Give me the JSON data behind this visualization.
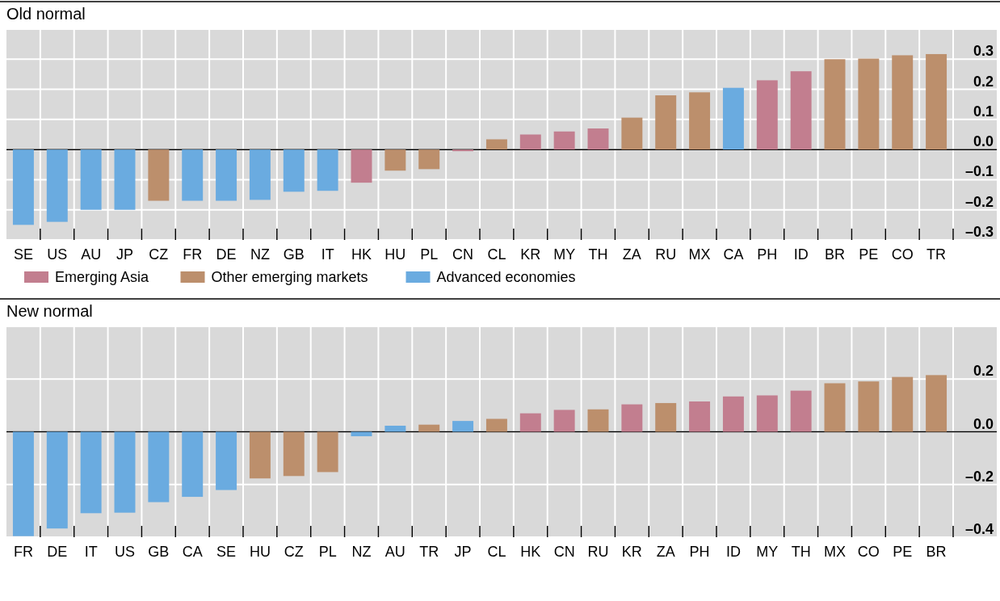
{
  "chart_data": [
    {
      "type": "bar",
      "title": "Old normal",
      "grid": true,
      "legend": "bottom",
      "categories": [
        "SE",
        "US",
        "AU",
        "JP",
        "CZ",
        "FR",
        "DE",
        "NZ",
        "GB",
        "IT",
        "HK",
        "HU",
        "PL",
        "CN",
        "CL",
        "KR",
        "MY",
        "TH",
        "ZA",
        "RU",
        "MX",
        "CA",
        "PH",
        "ID",
        "BR",
        "PE",
        "CO",
        "TR"
      ],
      "ylim": [
        -0.3,
        0.4
      ],
      "yticks": [
        {
          "value": -0.3,
          "label": "–0.3"
        },
        {
          "value": -0.2,
          "label": "–0.2"
        },
        {
          "value": -0.1,
          "label": "–0.1"
        },
        {
          "value": 0,
          "label": "0.0"
        },
        {
          "value": 0.1,
          "label": "0.1"
        },
        {
          "value": 0.2,
          "label": "0.2"
        },
        {
          "value": 0.3,
          "label": "0.3"
        },
        {
          "value": 0.4,
          "label": null
        }
      ],
      "series": [
        {
          "name": "Emerging Asia",
          "color": "#c27e8f",
          "values": [
            null,
            null,
            null,
            null,
            null,
            null,
            null,
            null,
            null,
            null,
            -0.11,
            null,
            null,
            -0.003,
            null,
            0.05,
            0.06,
            0.07,
            null,
            null,
            null,
            null,
            0.23,
            0.26,
            null,
            null,
            null,
            null
          ]
        },
        {
          "name": "Other emerging markets",
          "color": "#bc8f6c",
          "values": [
            null,
            null,
            null,
            null,
            -0.17,
            null,
            null,
            null,
            null,
            null,
            null,
            -0.07,
            -0.065,
            null,
            0.034,
            null,
            null,
            null,
            0.106,
            0.18,
            0.19,
            null,
            null,
            null,
            0.3,
            0.302,
            0.313,
            0.317
          ]
        },
        {
          "name": "Advanced economies",
          "color": "#6aabe0",
          "values": [
            -0.25,
            -0.24,
            -0.2,
            -0.2,
            null,
            -0.17,
            -0.17,
            -0.167,
            -0.14,
            -0.137,
            null,
            null,
            null,
            null,
            null,
            null,
            null,
            null,
            null,
            null,
            null,
            0.205,
            null,
            null,
            null,
            null,
            null,
            null
          ]
        }
      ]
    },
    {
      "type": "bar",
      "title": "New normal",
      "grid": true,
      "categories": [
        "FR",
        "DE",
        "IT",
        "US",
        "GB",
        "CA",
        "SE",
        "HU",
        "CZ",
        "PL",
        "NZ",
        "AU",
        "TR",
        "JP",
        "CL",
        "HK",
        "CN",
        "RU",
        "KR",
        "ZA",
        "PH",
        "ID",
        "MY",
        "TH",
        "MX",
        "CO",
        "PE",
        "BR"
      ],
      "ylim": [
        -0.4,
        0.4
      ],
      "yticks": [
        {
          "value": -0.4,
          "label": "–0.4"
        },
        {
          "value": -0.2,
          "label": "–0.2"
        },
        {
          "value": 0,
          "label": "0.0"
        },
        {
          "value": 0.2,
          "label": "0.2"
        },
        {
          "value": 0.4,
          "label": null
        }
      ],
      "series": [
        {
          "color": "#c27e8f",
          "values": [
            null,
            null,
            null,
            null,
            null,
            null,
            null,
            null,
            null,
            null,
            null,
            null,
            null,
            null,
            null,
            0.07,
            0.083,
            null,
            0.104,
            null,
            0.115,
            0.134,
            0.138,
            0.156,
            null,
            null,
            null,
            null
          ]
        },
        {
          "color": "#bc8f6c",
          "values": [
            null,
            null,
            null,
            null,
            null,
            null,
            null,
            -0.177,
            -0.168,
            -0.153,
            null,
            null,
            0.027,
            null,
            0.049,
            null,
            null,
            0.085,
            null,
            0.109,
            null,
            null,
            null,
            null,
            0.184,
            0.191,
            0.208,
            0.215
          ]
        },
        {
          "color": "#6aabe0",
          "values": [
            -0.396,
            -0.367,
            -0.309,
            -0.307,
            -0.267,
            -0.247,
            -0.221,
            null,
            null,
            null,
            -0.017,
            0.023,
            null,
            0.041,
            null,
            null,
            null,
            null,
            null,
            null,
            null,
            null,
            null,
            null,
            null,
            null,
            null,
            null
          ]
        }
      ]
    }
  ]
}
